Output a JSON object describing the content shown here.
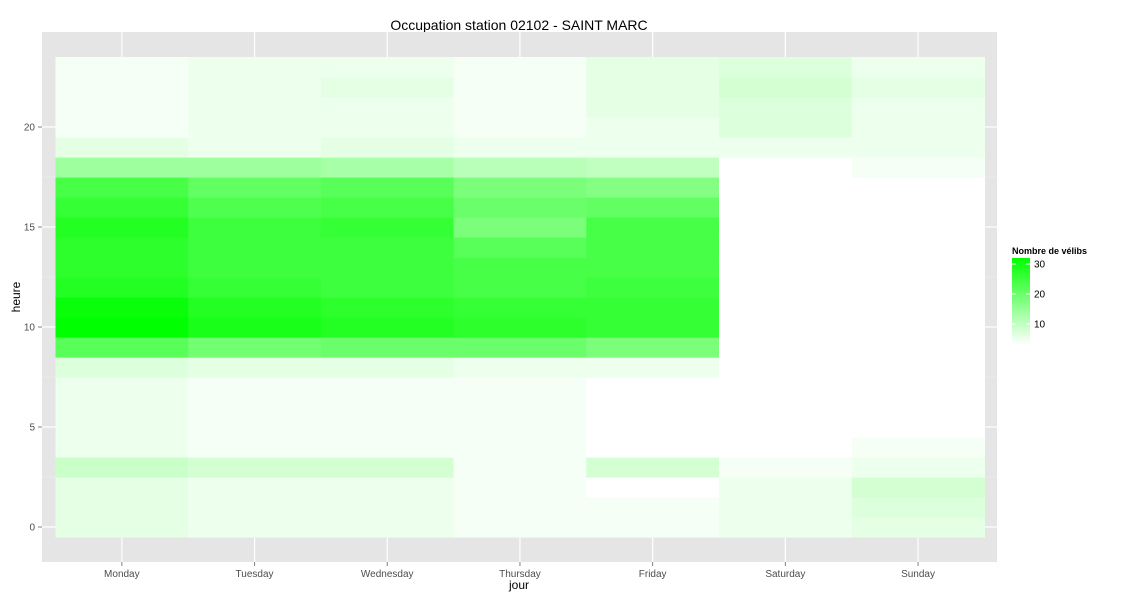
{
  "chart_data": {
    "type": "heatmap",
    "title": "Occupation station 02102 - SAINT MARC",
    "xlabel": "jour",
    "ylabel": "heure",
    "x_categories": [
      "Monday",
      "Tuesday",
      "Wednesday",
      "Thursday",
      "Friday",
      "Saturday",
      "Sunday"
    ],
    "y_values": [
      0,
      1,
      2,
      3,
      4,
      5,
      6,
      7,
      8,
      9,
      10,
      11,
      12,
      13,
      14,
      15,
      16,
      17,
      18,
      19,
      20,
      21,
      22,
      23
    ],
    "y_ticks": [
      0,
      5,
      10,
      15,
      20
    ],
    "y_range": [
      -0.5,
      23.5
    ],
    "grid": true,
    "color_scale": {
      "low": "#ffffff",
      "high": "#00ff00",
      "min": 3,
      "max": 32
    },
    "legend": {
      "title": "Nombre de vélibs",
      "ticks": [
        10,
        20,
        30
      ],
      "position": "right"
    },
    "values_by_hour": [
      [
        6,
        5,
        5,
        4,
        4,
        5,
        6
      ],
      [
        6,
        5,
        5,
        4,
        4,
        5,
        7
      ],
      [
        6,
        5,
        5,
        4,
        3,
        5,
        8
      ],
      [
        9,
        8,
        8,
        4,
        8,
        4,
        5
      ],
      [
        5,
        4,
        4,
        4,
        3,
        3,
        4
      ],
      [
        5,
        4,
        4,
        4,
        3,
        2,
        3
      ],
      [
        5,
        4,
        4,
        4,
        3,
        2,
        3
      ],
      [
        5,
        4,
        4,
        4,
        3,
        2,
        3
      ],
      [
        7,
        6,
        6,
        5,
        5,
        2,
        3
      ],
      [
        22,
        19,
        20,
        20,
        18,
        3,
        3
      ],
      [
        32,
        29,
        28,
        27,
        26,
        3,
        3
      ],
      [
        31,
        28,
        27,
        26,
        26,
        3,
        3
      ],
      [
        28,
        26,
        25,
        24,
        25,
        3,
        3
      ],
      [
        27,
        25,
        25,
        24,
        24,
        3,
        3
      ],
      [
        27,
        25,
        25,
        22,
        24,
        3,
        3
      ],
      [
        28,
        25,
        26,
        18,
        24,
        3,
        3
      ],
      [
        26,
        23,
        24,
        20,
        21,
        3,
        3
      ],
      [
        24,
        21,
        22,
        18,
        17,
        3,
        3
      ],
      [
        14,
        14,
        13,
        11,
        10,
        3,
        4
      ],
      [
        6,
        5,
        6,
        5,
        5,
        5,
        5
      ],
      [
        4,
        5,
        5,
        4,
        5,
        7,
        5
      ],
      [
        4,
        5,
        5,
        4,
        6,
        7,
        5
      ],
      [
        4,
        5,
        6,
        4,
        6,
        8,
        6
      ],
      [
        4,
        5,
        5,
        4,
        6,
        7,
        5
      ]
    ]
  }
}
